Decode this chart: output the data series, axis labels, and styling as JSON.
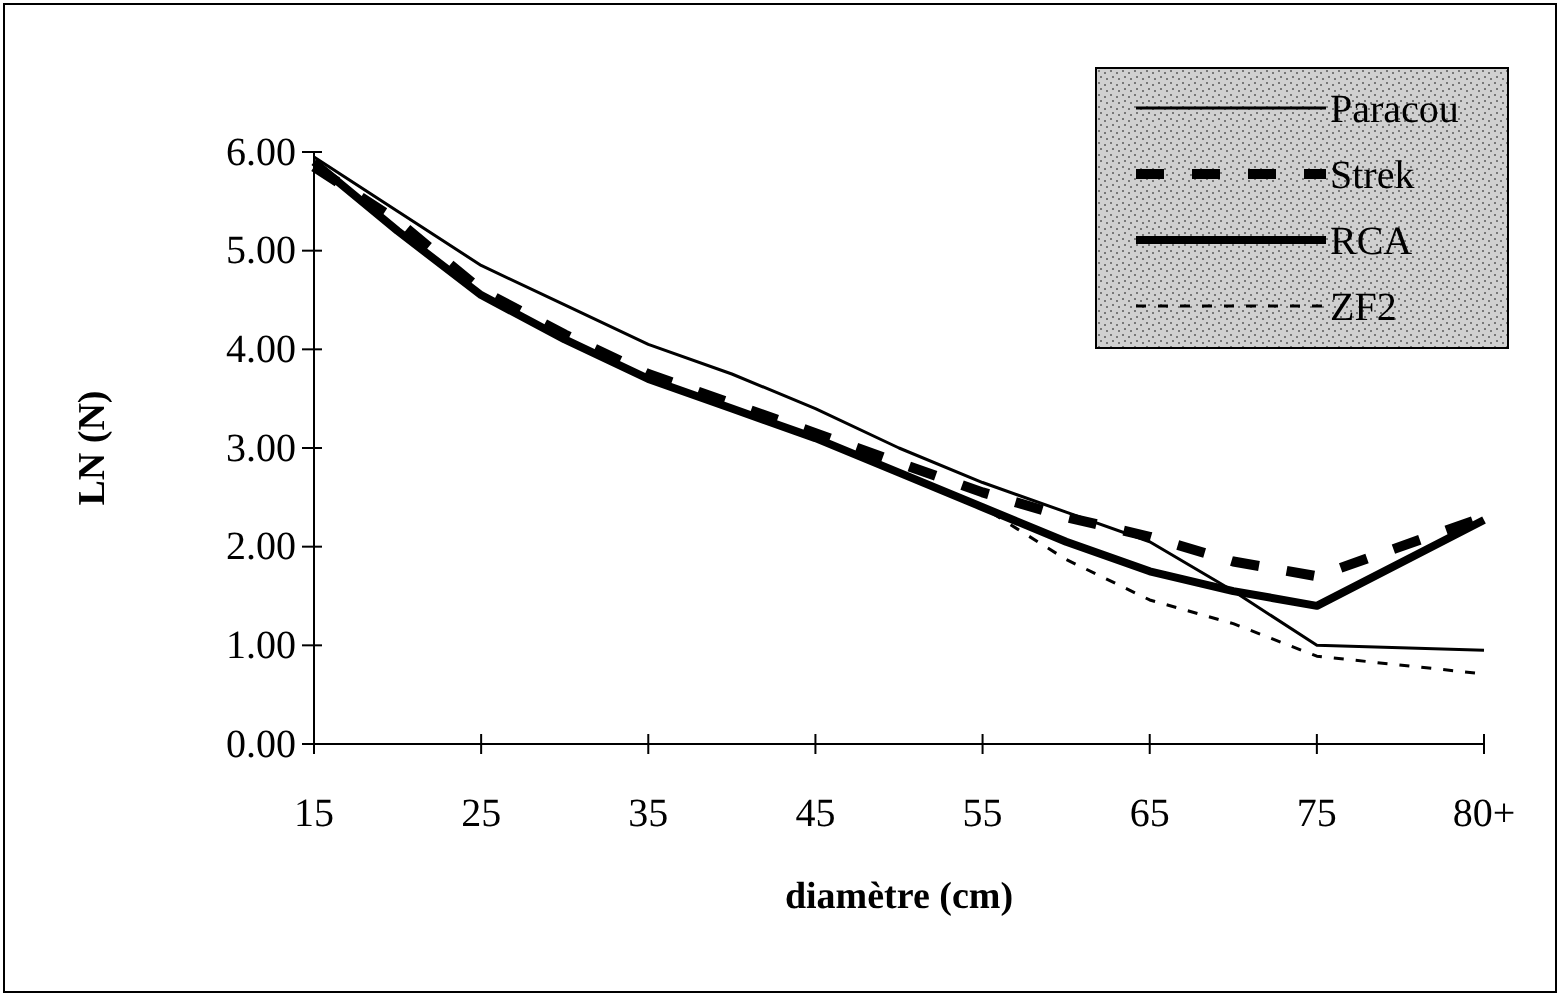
{
  "chart_data": {
    "type": "line",
    "xlabel": "diamètre (cm)",
    "ylabel": "LN (N)",
    "x": [
      15,
      20,
      25,
      30,
      35,
      40,
      45,
      50,
      55,
      60,
      65,
      70,
      75,
      85
    ],
    "xlim": [
      15,
      85
    ],
    "xticks": [
      15,
      25,
      35,
      45,
      55,
      65,
      75,
      {
        "value": 85,
        "label": "80+"
      }
    ],
    "ylim": [
      0,
      6
    ],
    "yticks": [
      {
        "value": 0,
        "label": "0.00"
      },
      {
        "value": 1,
        "label": "1.00"
      },
      {
        "value": 2,
        "label": "2.00"
      },
      {
        "value": 3,
        "label": "3.00"
      },
      {
        "value": 4,
        "label": "4.00"
      },
      {
        "value": 5,
        "label": "5.00"
      },
      {
        "value": 6,
        "label": "6.00"
      }
    ],
    "grid": false,
    "legend": "top right",
    "series": [
      {
        "name": "Paracou",
        "color": "#000000",
        "line_style": "solid",
        "values": [
          5.95,
          5.4,
          4.85,
          4.45,
          4.05,
          3.75,
          3.4,
          3.0,
          2.65,
          2.35,
          2.05,
          1.55,
          1.0,
          0.95
        ]
      },
      {
        "name": "Strek",
        "color": "#000000",
        "line_style": "dashed",
        "values": [
          5.85,
          5.3,
          4.6,
          4.15,
          3.75,
          3.45,
          3.15,
          2.85,
          2.55,
          2.3,
          2.1,
          1.85,
          1.7,
          2.3
        ]
      },
      {
        "name": "RCA",
        "color": "#000000",
        "line_style": "solid",
        "values": [
          5.9,
          5.2,
          4.55,
          4.1,
          3.7,
          3.4,
          3.1,
          2.75,
          2.4,
          2.05,
          1.75,
          1.55,
          1.4,
          2.27
        ]
      },
      {
        "name": "ZF2",
        "color": "#000000",
        "line_style": "dashed",
        "values": [
          5.9,
          5.2,
          4.55,
          4.1,
          3.7,
          3.4,
          3.1,
          2.75,
          2.4,
          1.87,
          1.46,
          1.22,
          0.89,
          0.71
        ]
      }
    ]
  }
}
